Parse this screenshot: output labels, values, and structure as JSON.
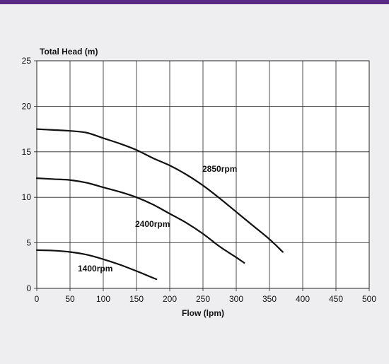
{
  "colors": {
    "top_bar": "#5b2a86",
    "panel_background": "#eeeef0",
    "plot_background": "#ffffff",
    "grid": "#222222",
    "curve": "#111111"
  },
  "chart_data": {
    "type": "line",
    "ylabel": "Total Head (m)",
    "xlabel": "Flow (lpm)",
    "xlim": [
      0,
      500
    ],
    "ylim": [
      0,
      25
    ],
    "xticks": [
      0,
      50,
      100,
      150,
      200,
      250,
      300,
      350,
      400,
      450,
      500
    ],
    "yticks": [
      0,
      5,
      10,
      15,
      20,
      25
    ],
    "grid": true,
    "series": [
      {
        "name": "2850rpm",
        "x": [
          0,
          25,
          50,
          75,
          100,
          125,
          150,
          175,
          200,
          225,
          250,
          275,
          300,
          325,
          350,
          370
        ],
        "y": [
          17.5,
          17.4,
          17.3,
          17.1,
          16.5,
          15.9,
          15.2,
          14.3,
          13.5,
          12.5,
          11.3,
          9.9,
          8.4,
          6.9,
          5.4,
          4.0
        ]
      },
      {
        "name": "2400rpm",
        "x": [
          0,
          25,
          50,
          75,
          100,
          125,
          150,
          175,
          200,
          225,
          250,
          275,
          300,
          312
        ],
        "y": [
          12.1,
          12.0,
          11.9,
          11.6,
          11.1,
          10.6,
          10.0,
          9.2,
          8.2,
          7.2,
          6.0,
          4.6,
          3.4,
          2.8
        ]
      },
      {
        "name": "1400rpm",
        "x": [
          0,
          25,
          50,
          75,
          100,
          125,
          150,
          165,
          180
        ],
        "y": [
          4.2,
          4.15,
          4.0,
          3.7,
          3.2,
          2.6,
          1.9,
          1.45,
          1.0
        ]
      }
    ]
  }
}
